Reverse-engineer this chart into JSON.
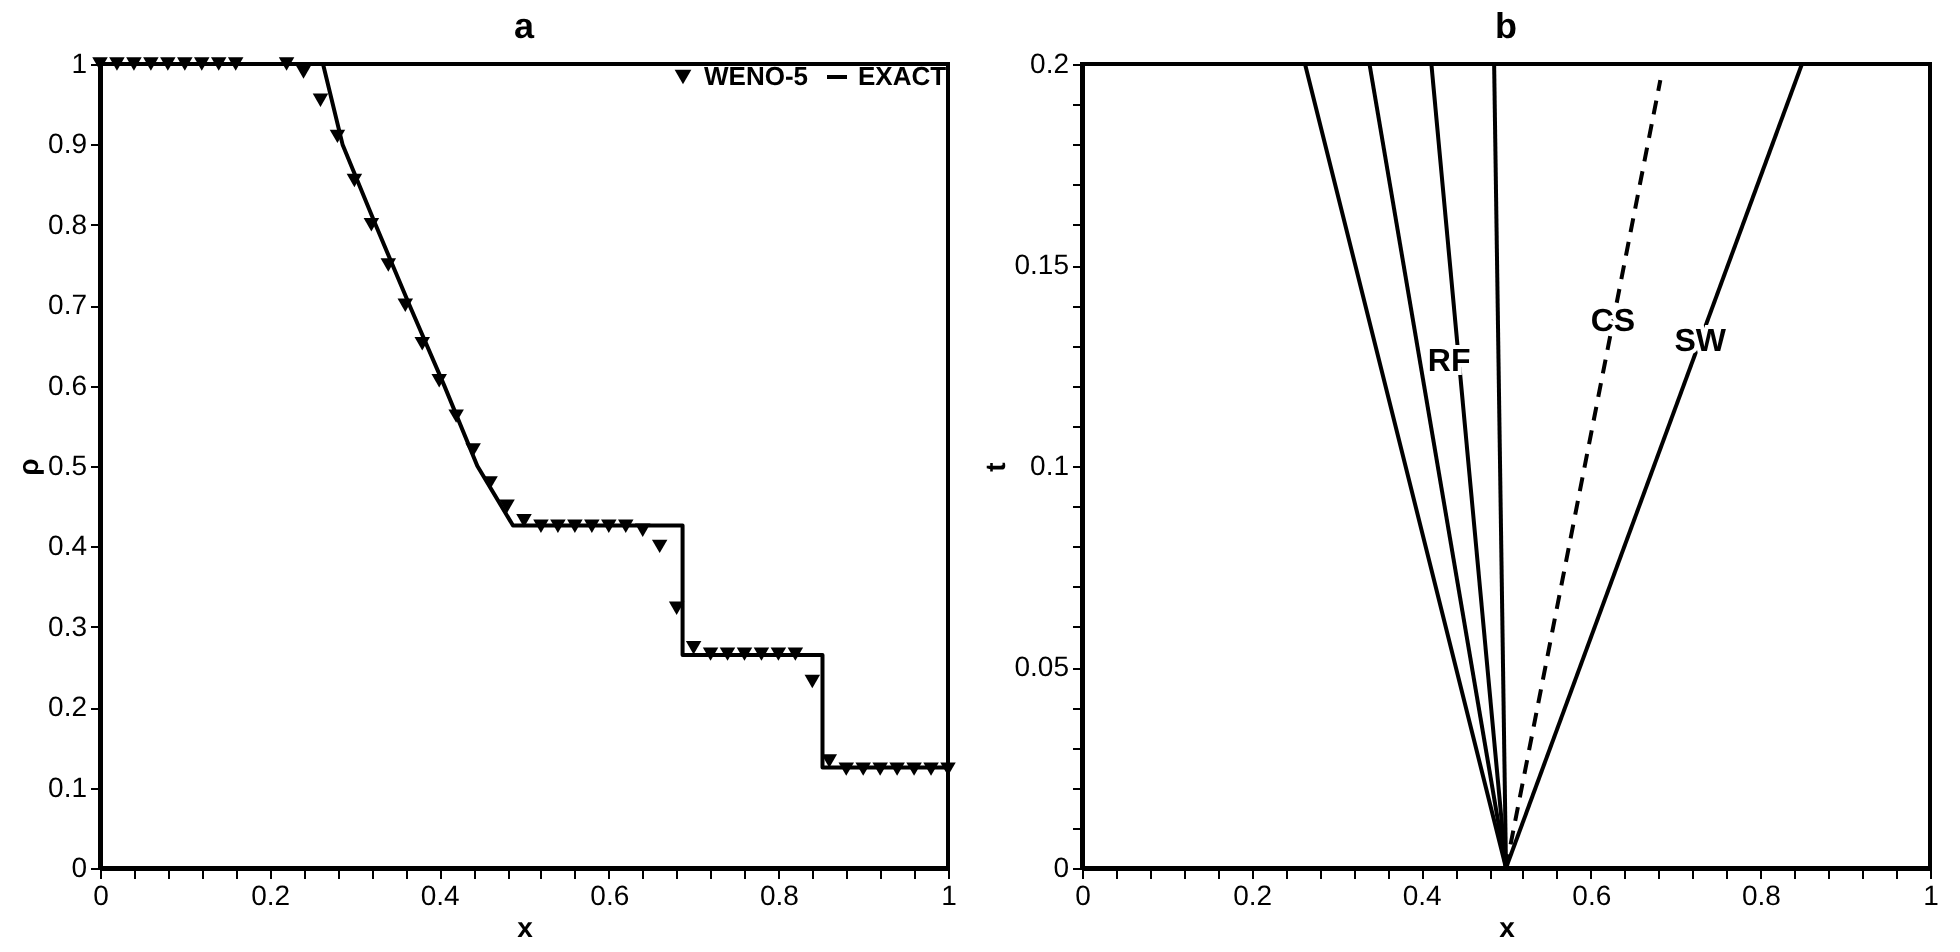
{
  "chart_data": [
    {
      "type": "line",
      "title": "a",
      "xlabel": "x",
      "ylabel": "ρ",
      "xlim": [
        0,
        1
      ],
      "ylim": [
        0,
        1
      ],
      "legend": "top right",
      "xticks": [
        0,
        {
          "value": 0.04,
          "label": null
        },
        {
          "value": 0.08,
          "label": null
        },
        {
          "value": 0.12,
          "label": null
        },
        {
          "value": 0.16,
          "label": null
        },
        0.2,
        {
          "value": 0.24,
          "label": null
        },
        {
          "value": 0.28,
          "label": null
        },
        {
          "value": 0.32,
          "label": null
        },
        {
          "value": 0.36,
          "label": null
        },
        0.4,
        {
          "value": 0.44,
          "label": null
        },
        {
          "value": 0.48,
          "label": null
        },
        {
          "value": 0.52,
          "label": null
        },
        {
          "value": 0.56,
          "label": null
        },
        0.6,
        {
          "value": 0.64,
          "label": null
        },
        {
          "value": 0.68,
          "label": null
        },
        {
          "value": 0.72,
          "label": null
        },
        {
          "value": 0.76,
          "label": null
        },
        0.8,
        {
          "value": 0.84,
          "label": null
        },
        {
          "value": 0.88,
          "label": null
        },
        {
          "value": 0.92,
          "label": null
        },
        {
          "value": 0.96,
          "label": null
        },
        1
      ],
      "yticks": [
        0,
        0.1,
        0.2,
        0.3,
        0.4,
        0.5,
        0.6,
        0.7,
        0.8,
        0.9,
        1
      ],
      "series": [
        {
          "name": "WENO-5",
          "type": "scatter",
          "marker": "triangle",
          "color": "#000000",
          "x": [
            0,
            0.02,
            0.04,
            0.06,
            0.08,
            0.1,
            0.12,
            0.14,
            0.16,
            0.22,
            0.24,
            0.26,
            0.28,
            0.3,
            0.32,
            0.34,
            0.36,
            0.38,
            0.4,
            0.42,
            0.44,
            0.46,
            0.48,
            0.5,
            0.52,
            0.54,
            0.56,
            0.58,
            0.6,
            0.62,
            0.64,
            0.66,
            0.68,
            0.7,
            0.72,
            0.74,
            0.76,
            0.78,
            0.8,
            0.82,
            0.84,
            0.86,
            0.88,
            0.9,
            0.92,
            0.94,
            0.96,
            0.98,
            1
          ],
          "values": [
            1,
            1,
            1,
            1,
            1,
            1,
            1,
            1,
            1,
            1,
            0.99,
            0.955,
            0.91,
            0.855,
            0.8,
            0.75,
            0.7,
            0.652,
            0.606,
            0.562,
            0.52,
            0.479,
            0.45,
            0.432,
            0.425,
            0.425,
            0.425,
            0.425,
            0.425,
            0.425,
            0.42,
            0.4,
            0.323,
            0.274,
            0.266,
            0.266,
            0.266,
            0.266,
            0.266,
            0.266,
            0.232,
            0.133,
            0.123,
            0.123,
            0.123,
            0.123,
            0.123,
            0.123,
            0.123
          ]
        },
        {
          "name": "EXACT",
          "type": "line",
          "color": "#000000",
          "x": [
            0,
            0.263,
            0.286,
            0.325,
            0.365,
            0.406,
            0.445,
            0.487,
            0.687,
            0.687,
            0.852,
            0.852,
            1
          ],
          "values": [
            1,
            1,
            0.9,
            0.8,
            0.7,
            0.6,
            0.5,
            0.426,
            0.426,
            0.265,
            0.265,
            0.125,
            0.125
          ]
        }
      ]
    },
    {
      "type": "line",
      "title": "b",
      "xlabel": "x",
      "ylabel": "t",
      "xlim": [
        0,
        1
      ],
      "ylim": [
        0,
        0.2
      ],
      "xticks": [
        0,
        {
          "value": 0.04,
          "label": null
        },
        {
          "value": 0.08,
          "label": null
        },
        {
          "value": 0.12,
          "label": null
        },
        {
          "value": 0.16,
          "label": null
        },
        0.2,
        {
          "value": 0.24,
          "label": null
        },
        {
          "value": 0.28,
          "label": null
        },
        {
          "value": 0.32,
          "label": null
        },
        {
          "value": 0.36,
          "label": null
        },
        0.4,
        {
          "value": 0.44,
          "label": null
        },
        {
          "value": 0.48,
          "label": null
        },
        {
          "value": 0.52,
          "label": null
        },
        {
          "value": 0.56,
          "label": null
        },
        0.6,
        {
          "value": 0.64,
          "label": null
        },
        {
          "value": 0.68,
          "label": null
        },
        {
          "value": 0.72,
          "label": null
        },
        {
          "value": 0.76,
          "label": null
        },
        0.8,
        {
          "value": 0.84,
          "label": null
        },
        {
          "value": 0.88,
          "label": null
        },
        {
          "value": 0.92,
          "label": null
        },
        {
          "value": 0.96,
          "label": null
        },
        1
      ],
      "yticks": [
        0,
        {
          "value": 0.01,
          "label": null
        },
        {
          "value": 0.02,
          "label": null
        },
        {
          "value": 0.03,
          "label": null
        },
        {
          "value": 0.04,
          "label": null
        },
        0.05,
        {
          "value": 0.06,
          "label": null
        },
        {
          "value": 0.07,
          "label": null
        },
        {
          "value": 0.08,
          "label": null
        },
        {
          "value": 0.09,
          "label": null
        },
        0.1,
        {
          "value": 0.11,
          "label": null
        },
        {
          "value": 0.12,
          "label": null
        },
        {
          "value": 0.13,
          "label": null
        },
        {
          "value": 0.14,
          "label": null
        },
        0.15,
        {
          "value": 0.16,
          "label": null
        },
        {
          "value": 0.17,
          "label": null
        },
        {
          "value": 0.18,
          "label": null
        },
        {
          "value": 0.19,
          "label": null
        },
        0.2
      ],
      "series": [
        {
          "color": "#000000",
          "x": [
            0.5,
            0.263
          ],
          "values": [
            0,
            0.2
          ]
        },
        {
          "color": "#000000",
          "x": [
            0.5,
            0.339
          ],
          "values": [
            0,
            0.2
          ]
        },
        {
          "color": "#000000",
          "x": [
            0.5,
            0.412
          ],
          "values": [
            0,
            0.2
          ]
        },
        {
          "color": "#000000",
          "x": [
            0.5,
            0.486
          ],
          "values": [
            0,
            0.2
          ]
        },
        {
          "color": "#000000",
          "line_style": "dashed",
          "x": [
            0.5,
            0.682
          ],
          "values": [
            0,
            0.196
          ]
        },
        {
          "color": "#000000",
          "x": [
            0.5,
            0.849
          ],
          "values": [
            0,
            0.2
          ]
        }
      ],
      "annotations": [
        {
          "text": "RF",
          "x": 0.433,
          "y": 0.126
        },
        {
          "text": "CS",
          "x": 0.626,
          "y": 0.136
        },
        {
          "text": "SW",
          "x": 0.729,
          "y": 0.131
        }
      ]
    }
  ]
}
